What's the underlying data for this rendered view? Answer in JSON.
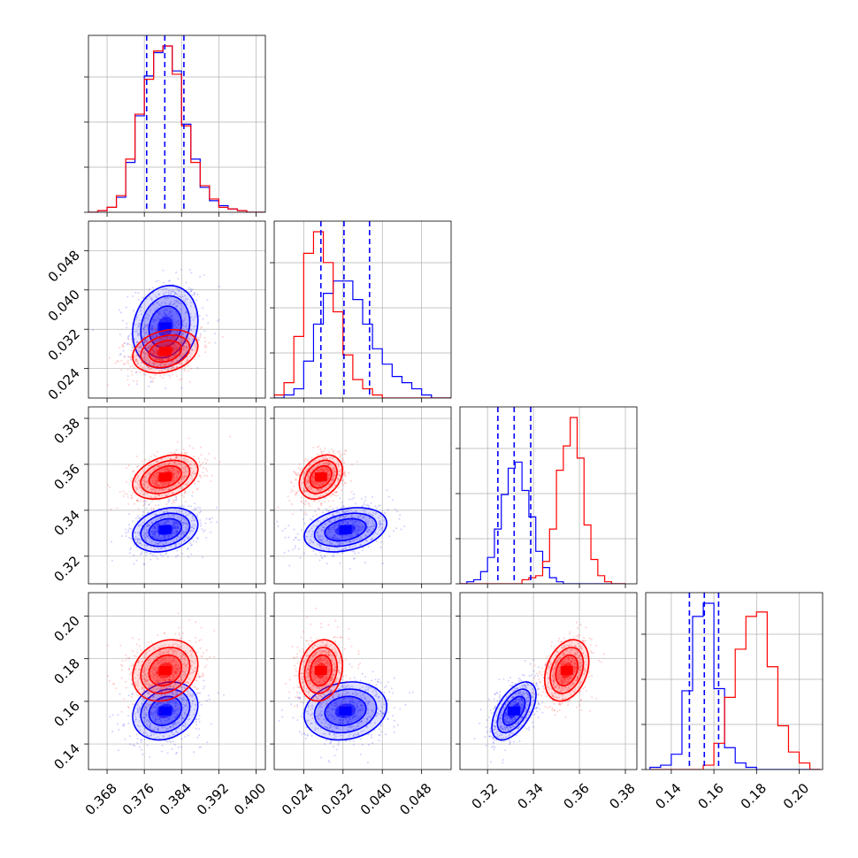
{
  "chart_data": {
    "type": "scatter",
    "title": "",
    "grid": true,
    "series": [
      {
        "color": "#0000ff",
        "mean": [
          0.3805,
          0.0325,
          0.3315,
          0.1555
        ],
        "sd": [
          0.0035,
          0.0042,
          0.0048,
          0.0068
        ],
        "corr": {
          "0-1": 0.15,
          "0-2": 0.25,
          "0-3": 0.2,
          "1-2": 0.3,
          "1-3": 0.15,
          "2-3": 0.55
        }
      },
      {
        "color": "#ff0000",
        "mean": [
          0.3805,
          0.0275,
          0.3545,
          0.1745
        ],
        "sd": [
          0.0035,
          0.0022,
          0.0048,
          0.0072
        ],
        "corr": {
          "0-1": 0.25,
          "0-2": 0.35,
          "0-3": 0.2,
          "1-2": 0.3,
          "1-3": 0.15,
          "2-3": 0.3
        }
      }
    ],
    "quantile_lines": {
      "color": "#0000ff",
      "p0": [
        0.3765,
        0.3804,
        0.3845
      ],
      "p1": [
        0.0275,
        0.0322,
        0.0374
      ],
      "p2": [
        0.3245,
        0.3316,
        0.3388
      ],
      "p3": [
        0.1485,
        0.1555,
        0.1622
      ]
    },
    "histograms": [
      {
        "bin_edges": [
          0.364,
          0.366,
          0.368,
          0.37,
          0.372,
          0.374,
          0.376,
          0.378,
          0.38,
          0.382,
          0.384,
          0.386,
          0.388,
          0.39,
          0.392,
          0.394,
          0.396,
          0.398,
          0.4,
          0.402
        ],
        "blue": [
          0,
          1,
          3,
          9,
          30,
          58,
          82,
          96,
          100,
          85,
          53,
          32,
          15,
          7,
          4,
          2,
          1,
          0,
          0
        ],
        "red": [
          0,
          1,
          3,
          10,
          32,
          59,
          80,
          97,
          100,
          83,
          52,
          30,
          16,
          8,
          3,
          2,
          1,
          0,
          0
        ]
      },
      {
        "bin_edges": [
          0.018,
          0.02,
          0.022,
          0.024,
          0.026,
          0.028,
          0.03,
          0.032,
          0.034,
          0.036,
          0.038,
          0.04,
          0.042,
          0.044,
          0.046,
          0.048,
          0.05,
          0.052,
          0.054
        ],
        "blue": [
          0,
          1,
          3,
          12,
          24,
          34,
          38,
          38,
          32,
          24,
          16,
          11,
          7,
          5,
          3,
          1,
          0,
          0
        ],
        "red": [
          1,
          5,
          20,
          47,
          54,
          44,
          28,
          14,
          6,
          3,
          1,
          0,
          0,
          0,
          0,
          0,
          0,
          0
        ]
      },
      {
        "bin_edges": [
          0.308,
          0.311,
          0.314,
          0.317,
          0.32,
          0.323,
          0.326,
          0.329,
          0.332,
          0.335,
          0.338,
          0.341,
          0.344,
          0.347,
          0.35,
          0.353,
          0.356,
          0.359,
          0.362,
          0.365,
          0.368,
          0.371,
          0.374,
          0.377,
          0.38
        ],
        "blue": [
          0,
          1,
          2,
          6,
          13,
          27,
          44,
          57,
          60,
          46,
          33,
          16,
          8,
          3,
          1,
          0,
          0,
          0,
          0,
          0,
          0,
          0,
          0,
          0
        ],
        "red": [
          0,
          0,
          0,
          0,
          0,
          0,
          0,
          0,
          0,
          2,
          3,
          4,
          11,
          27,
          56,
          68,
          82,
          62,
          29,
          12,
          4,
          1,
          0,
          0
        ]
      },
      {
        "bin_edges": [
          0.13,
          0.135,
          0.14,
          0.145,
          0.15,
          0.155,
          0.16,
          0.165,
          0.17,
          0.175,
          0.18,
          0.185,
          0.19,
          0.195,
          0.2,
          0.205,
          0.21
        ],
        "blue": [
          1,
          2,
          7,
          36,
          70,
          76,
          37,
          10,
          3,
          1,
          0,
          0,
          0,
          0,
          0,
          0
        ],
        "red": [
          0,
          0,
          0,
          0,
          0,
          2,
          12,
          33,
          55,
          70,
          72,
          47,
          20,
          8,
          3,
          0
        ]
      }
    ],
    "axes": [
      {
        "range": [
          0.364,
          0.402
        ],
        "ticks": [
          0.368,
          0.376,
          0.384,
          0.392,
          0.4
        ],
        "tick_labels": [
          "0.368",
          "0.376",
          "0.384",
          "0.392",
          "0.400"
        ]
      },
      {
        "range": [
          0.018,
          0.054
        ],
        "ticks": [
          0.024,
          0.032,
          0.04,
          0.048
        ],
        "tick_labels": [
          "0.024",
          "0.032",
          "0.040",
          "0.048"
        ]
      },
      {
        "range": [
          0.308,
          0.385
        ],
        "ticks": [
          0.32,
          0.34,
          0.36,
          0.38
        ],
        "tick_labels": [
          "0.32",
          "0.34",
          "0.36",
          "0.38"
        ]
      },
      {
        "range": [
          0.128,
          0.211
        ],
        "ticks": [
          0.14,
          0.16,
          0.18,
          0.2
        ],
        "tick_labels": [
          "0.14",
          "0.16",
          "0.18",
          "0.20"
        ]
      }
    ]
  }
}
